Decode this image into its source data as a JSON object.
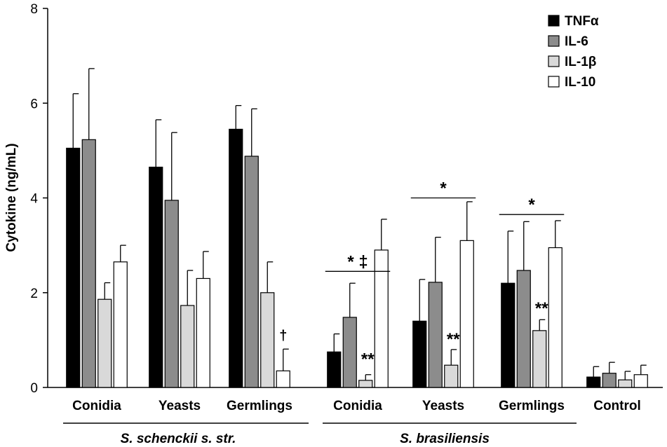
{
  "chart_data": {
    "type": "bar",
    "title": "",
    "xlabel": "",
    "ylabel": "Cytokine (ng/mL)",
    "ylim": [
      0,
      8
    ],
    "yticks": [
      "0",
      "2",
      "4",
      "6",
      "8"
    ],
    "categories": [
      "Conidia",
      "Yeasts",
      "Germlings",
      "Conidia",
      "Yeasts",
      "Germlings",
      "Control"
    ],
    "groups": [
      {
        "label": "S. schenckii s. str.",
        "categories": [
          0,
          1,
          2
        ]
      },
      {
        "label": "S. brasiliensis",
        "categories": [
          3,
          4,
          5
        ]
      }
    ],
    "series": [
      {
        "name": "TNFα",
        "color": "#000000",
        "values": [
          5.05,
          4.65,
          5.45,
          0.75,
          1.4,
          2.2,
          0.22
        ],
        "errors": [
          1.15,
          1.0,
          0.5,
          0.38,
          0.88,
          1.1,
          0.22
        ]
      },
      {
        "name": "IL-6",
        "color": "#8c8c8c",
        "values": [
          5.23,
          3.95,
          4.88,
          1.48,
          2.22,
          2.47,
          0.3
        ],
        "errors": [
          1.5,
          1.43,
          1.0,
          0.72,
          0.95,
          1.03,
          0.23
        ]
      },
      {
        "name": "IL-1β",
        "color": "#d9d9d9",
        "values": [
          1.86,
          1.73,
          2.0,
          0.15,
          0.47,
          1.2,
          0.16
        ],
        "errors": [
          0.35,
          0.74,
          0.65,
          0.12,
          0.33,
          0.23,
          0.18
        ]
      },
      {
        "name": "IL-10",
        "color": "#ffffff",
        "values": [
          2.65,
          2.3,
          0.35,
          2.9,
          3.1,
          2.95,
          0.27
        ],
        "errors": [
          0.35,
          0.57,
          0.46,
          0.65,
          0.82,
          0.57,
          0.2
        ]
      }
    ],
    "legend": {
      "position": "top-right",
      "entries": [
        "TNFα",
        "IL-6",
        "IL-1β",
        "IL-10"
      ]
    },
    "annotations": [
      {
        "text": "†",
        "category": 2,
        "series": 3,
        "y": 1.0
      },
      {
        "text": "* ‡",
        "bracket_categories": [
          3
        ],
        "y": 2.45
      },
      {
        "text": "**",
        "category": 3,
        "series": 2,
        "y": 0.48
      },
      {
        "text": "*",
        "bracket_categories": [
          4
        ],
        "y": 4.0
      },
      {
        "text": "**",
        "category": 4,
        "series": 2,
        "y": 0.9
      },
      {
        "text": "*",
        "bracket_categories": [
          5
        ],
        "y": 3.65
      },
      {
        "text": "**",
        "category": 5,
        "series": 2,
        "y": 1.55
      }
    ]
  }
}
